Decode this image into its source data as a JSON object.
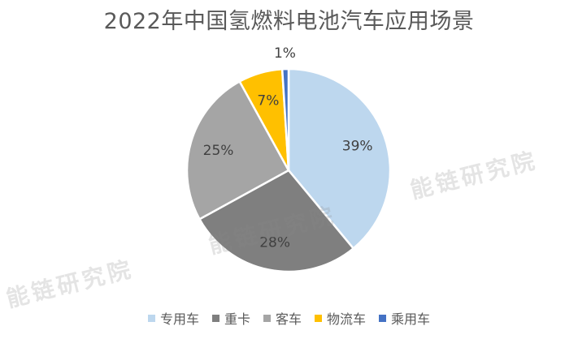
{
  "chart_data": {
    "type": "pie",
    "title": "2022年中国氢燃料电池汽车应用场景",
    "categories": [
      "专用车",
      "重卡",
      "客车",
      "物流车",
      "乘用车"
    ],
    "values": [
      39,
      28,
      25,
      7,
      1
    ],
    "labels": [
      "39%",
      "28%",
      "25%",
      "7%",
      "1%"
    ],
    "colors": [
      "#BDD7EE",
      "#7F7F7F",
      "#A5A5A5",
      "#FFC000",
      "#4472C4"
    ],
    "legend_position": "bottom"
  },
  "watermarks": [
    "能链研究院",
    "能链研究院",
    "能链研究院"
  ]
}
